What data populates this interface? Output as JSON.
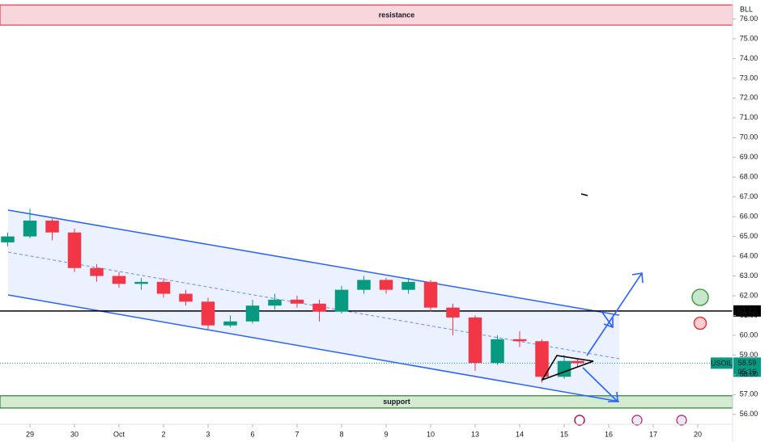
{
  "chart_data": {
    "type": "candlestick",
    "symbol": "USOIL",
    "corner_label": "BLL",
    "countdown": "05:16",
    "last_price": 58.59,
    "level_line": 61.23,
    "resistance": {
      "label": "resistance",
      "range": [
        75.69,
        76.71
      ]
    },
    "support": {
      "label": "support",
      "range": [
        56.32,
        56.94
      ]
    },
    "up_color": "#089981",
    "down_color": "#f23645",
    "x": [
      -0.5,
      0,
      0.5,
      1,
      1.5,
      2,
      2.5,
      3,
      3.5,
      4,
      4.5,
      5,
      5.5,
      6,
      6.5,
      7,
      7.5,
      8,
      8.5,
      9,
      9.5,
      10,
      10.5,
      11,
      11.5,
      12,
      12.3
    ],
    "open": [
      64.7,
      65.0,
      65.8,
      65.2,
      63.4,
      63.0,
      62.6,
      62.7,
      62.1,
      61.7,
      60.5,
      60.7,
      61.5,
      61.8,
      61.6,
      61.2,
      62.3,
      62.8,
      62.3,
      62.7,
      61.4,
      60.9,
      58.6,
      59.8,
      59.7,
      57.9,
      58.7
    ],
    "high": [
      65.2,
      66.4,
      65.9,
      65.4,
      63.6,
      63.2,
      62.9,
      62.9,
      62.3,
      61.9,
      61.0,
      61.8,
      62.1,
      62.0,
      61.8,
      62.5,
      63.0,
      62.9,
      62.9,
      62.8,
      61.6,
      61.0,
      60.0,
      60.2,
      59.8,
      59.0,
      58.8
    ],
    "low": [
      64.5,
      64.9,
      64.8,
      63.2,
      62.7,
      62.4,
      62.3,
      61.9,
      61.5,
      60.3,
      60.4,
      60.6,
      61.3,
      61.4,
      60.7,
      61.1,
      62.1,
      62.1,
      62.1,
      61.2,
      60.0,
      58.2,
      58.5,
      59.4,
      57.6,
      57.8,
      58.4
    ],
    "close": [
      65.0,
      65.8,
      65.2,
      63.4,
      63.0,
      62.6,
      62.7,
      62.1,
      61.7,
      60.5,
      60.7,
      61.5,
      61.8,
      61.6,
      61.2,
      62.3,
      62.8,
      62.3,
      62.7,
      61.4,
      60.9,
      58.6,
      59.8,
      59.7,
      57.9,
      58.7,
      58.59
    ],
    "xlim": [
      -0.673,
      15.782
    ],
    "xticks": [
      {
        "value": 0,
        "label": "29"
      },
      {
        "value": 1,
        "label": "30"
      },
      {
        "value": 2,
        "label": "Oct"
      },
      {
        "value": 3,
        "label": "2"
      },
      {
        "value": 4,
        "label": "3"
      },
      {
        "value": 5,
        "label": "6"
      },
      {
        "value": 6,
        "label": "7"
      },
      {
        "value": 7,
        "label": "8"
      },
      {
        "value": 8,
        "label": "9"
      },
      {
        "value": 9,
        "label": "10"
      },
      {
        "value": 10,
        "label": "13"
      },
      {
        "value": 11,
        "label": "14"
      },
      {
        "value": 12,
        "label": "15"
      },
      {
        "value": 13,
        "label": "16"
      },
      {
        "value": 14,
        "label": "17"
      },
      {
        "value": 15,
        "label": "20"
      }
    ],
    "ylim": [
      55.5,
      76.96
    ],
    "yticks": [
      {
        "value": 56,
        "label": "56.00"
      },
      {
        "value": 57,
        "label": "57.00"
      },
      {
        "value": 58,
        "label": "58.00"
      },
      {
        "value": 59,
        "label": "59.00"
      },
      {
        "value": 60,
        "label": "60.00"
      },
      {
        "value": 61,
        "label": "61.00"
      },
      {
        "value": 62,
        "label": "62.00"
      },
      {
        "value": 63,
        "label": "63.00"
      },
      {
        "value": 64,
        "label": "64.00"
      },
      {
        "value": 65,
        "label": "65.00"
      },
      {
        "value": 66,
        "label": "66.00"
      },
      {
        "value": 67,
        "label": "67.00"
      },
      {
        "value": 68,
        "label": "68.00"
      },
      {
        "value": 69,
        "label": "69.00"
      },
      {
        "value": 70,
        "label": "70.00"
      },
      {
        "value": 71,
        "label": "71.00"
      },
      {
        "value": 72,
        "label": "72.00"
      },
      {
        "value": 73,
        "label": "73.00"
      },
      {
        "value": 74,
        "label": "74.00"
      },
      {
        "value": 75,
        "label": "75.00"
      },
      {
        "value": 76,
        "label": "76.00"
      }
    ],
    "grid": false
  }
}
